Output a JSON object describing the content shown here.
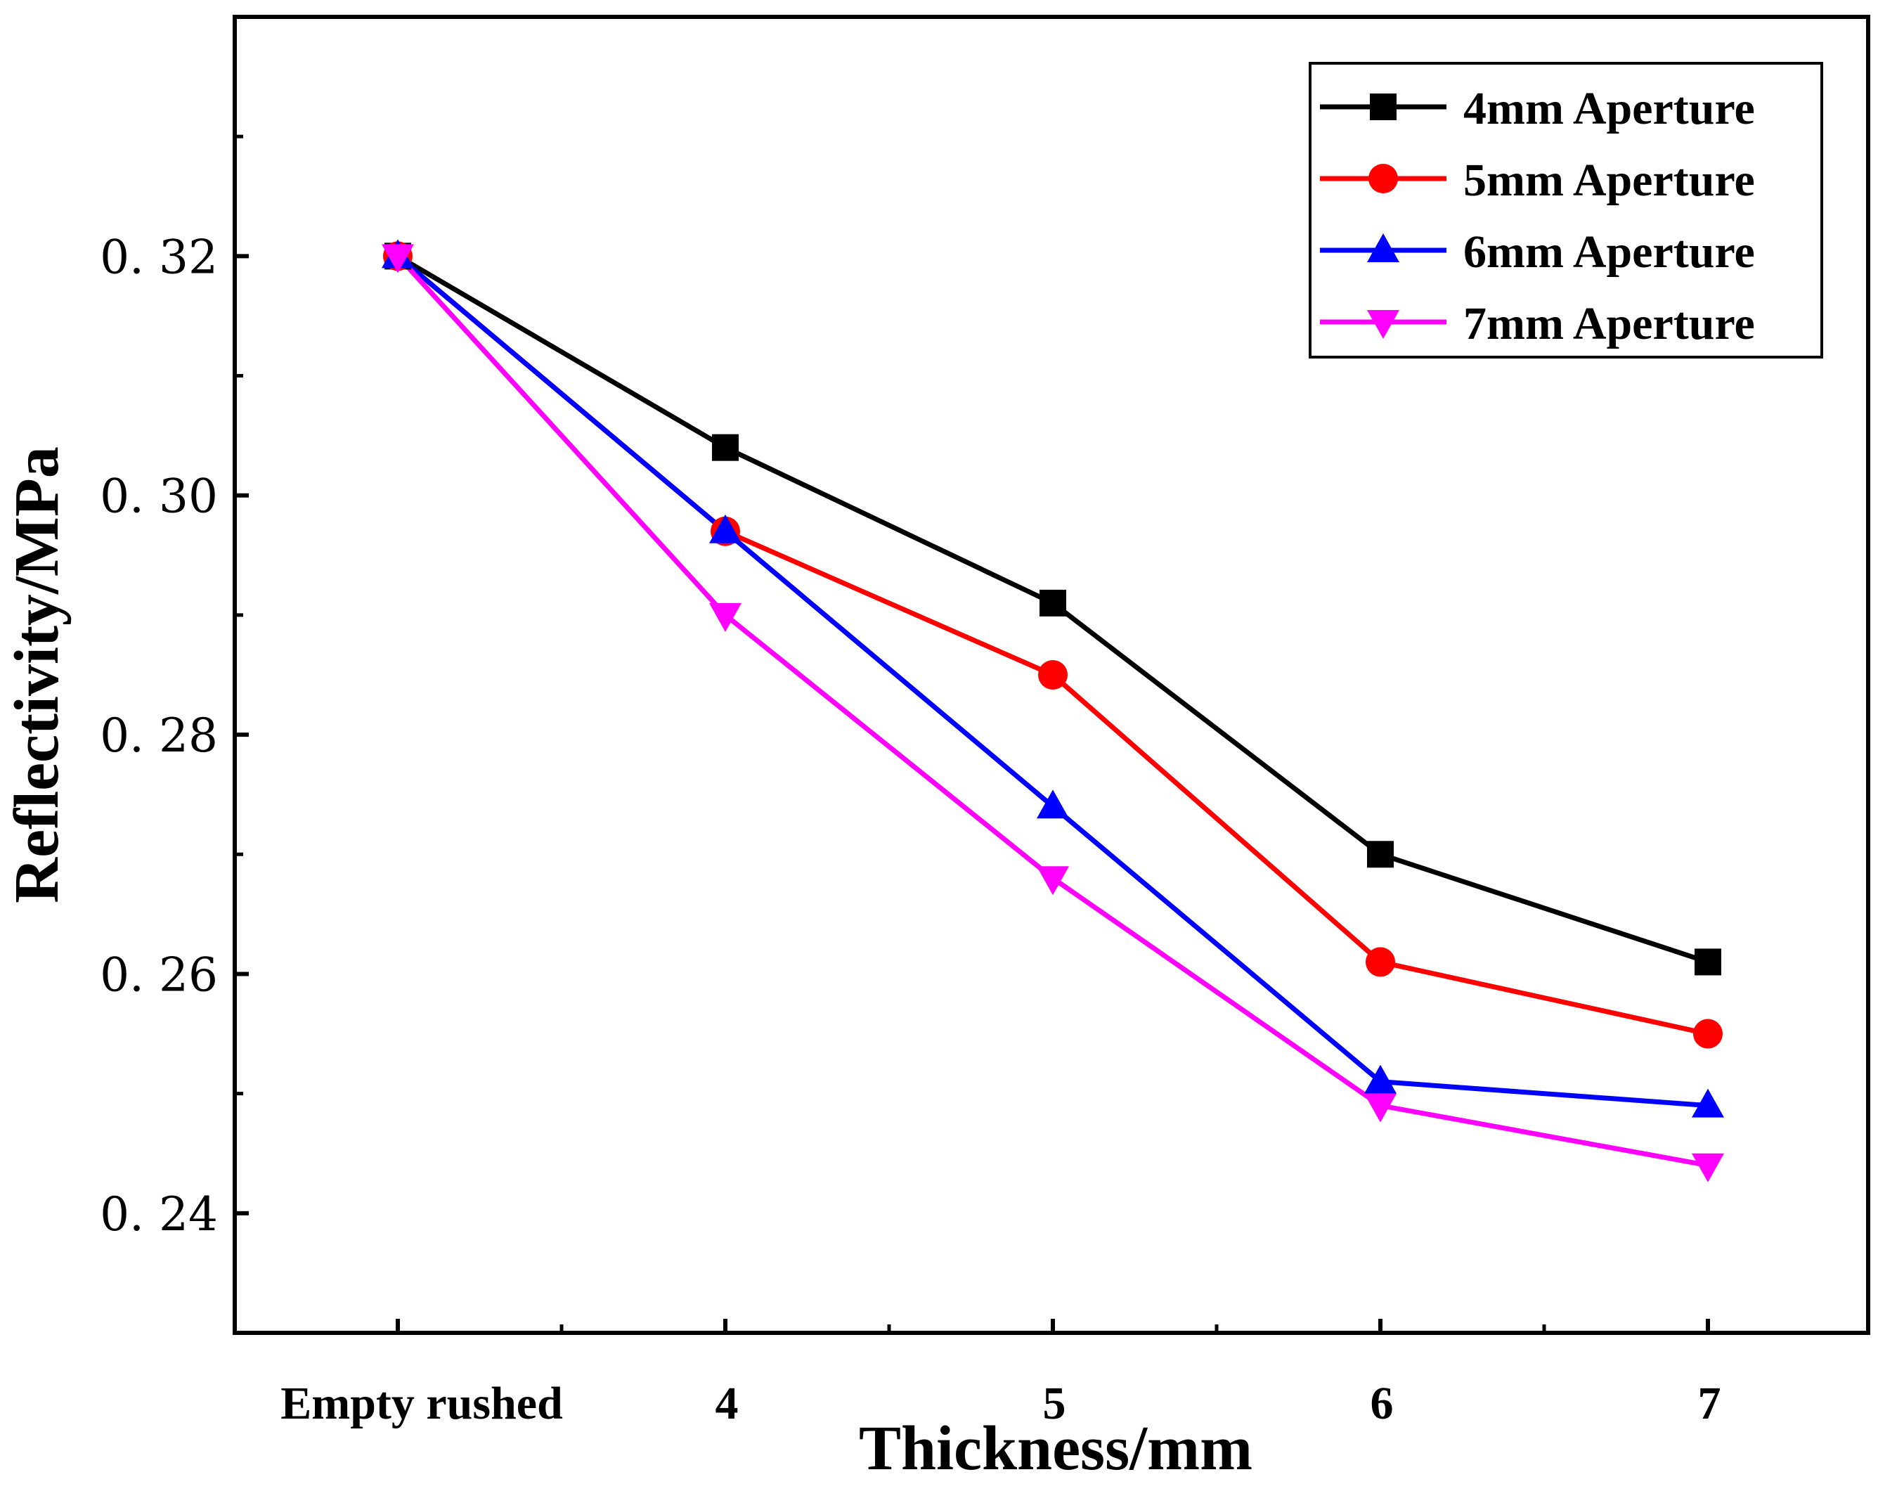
{
  "chart_data": {
    "type": "line",
    "xlabel": "Thickness/mm",
    "ylabel": "Reflectivity/MPa",
    "categories": [
      "Empty rushed",
      "4",
      "5",
      "6",
      "7"
    ],
    "ylim": [
      0.23,
      0.34
    ],
    "yticks": [
      0.24,
      0.26,
      0.28,
      0.3,
      0.32
    ],
    "ytick_labels": [
      "0. 24",
      "0. 26",
      "0. 28",
      "0. 30",
      "0. 32"
    ],
    "grid": false,
    "legend_position": "top-right",
    "series": [
      {
        "name": "4mm Aperture",
        "color": "#000000",
        "marker": "square",
        "values": [
          0.32,
          0.304,
          0.291,
          0.27,
          0.261
        ]
      },
      {
        "name": "5mm Aperture",
        "color": "#ff0000",
        "marker": "circle",
        "values": [
          0.32,
          0.297,
          0.285,
          0.261,
          0.255
        ]
      },
      {
        "name": "6mm Aperture",
        "color": "#0000ff",
        "marker": "triangle-up",
        "values": [
          0.32,
          0.297,
          0.274,
          0.251,
          0.249
        ]
      },
      {
        "name": "7mm Aperture",
        "color": "#ff00ff",
        "marker": "triangle-down",
        "values": [
          0.32,
          0.29,
          0.268,
          0.249,
          0.244
        ]
      }
    ]
  }
}
